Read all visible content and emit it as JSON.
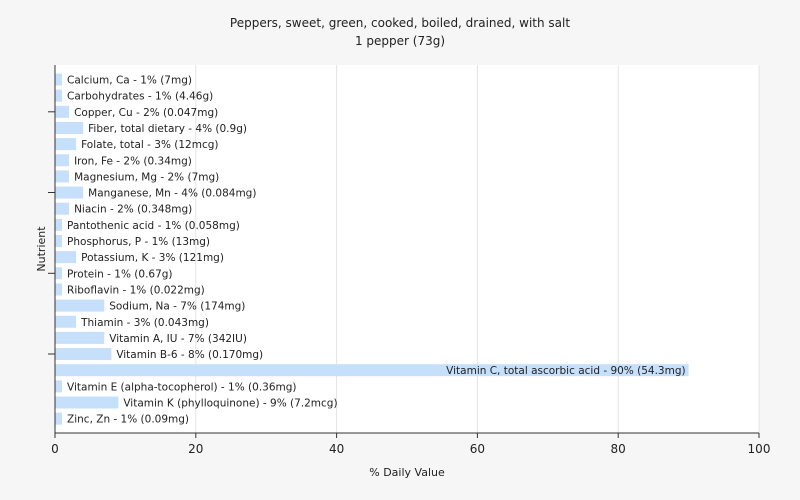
{
  "chart_data": {
    "type": "bar",
    "orientation": "horizontal",
    "title": "Peppers, sweet, green, cooked, boiled, drained, with salt",
    "subtitle": "1 pepper (73g)",
    "xlabel": "% Daily Value",
    "ylabel": "Nutrient",
    "xlim": [
      0,
      100
    ],
    "xticks": [
      0,
      20,
      40,
      60,
      80,
      100
    ],
    "grid": true,
    "bar_color": "#c6dffa",
    "categories": [
      "Calcium, Ca - 1% (7mg)",
      "Carbohydrates - 1% (4.46g)",
      "Copper, Cu - 2% (0.047mg)",
      "Fiber, total dietary - 4% (0.9g)",
      "Folate, total - 3% (12mcg)",
      "Iron, Fe - 2% (0.34mg)",
      "Magnesium, Mg - 2% (7mg)",
      "Manganese, Mn - 4% (0.084mg)",
      "Niacin - 2% (0.348mg)",
      "Pantothenic acid - 1% (0.058mg)",
      "Phosphorus, P - 1% (13mg)",
      "Potassium, K - 3% (121mg)",
      "Protein - 1% (0.67g)",
      "Riboflavin - 1% (0.022mg)",
      "Sodium, Na - 7% (174mg)",
      "Thiamin - 3% (0.043mg)",
      "Vitamin A, IU - 7% (342IU)",
      "Vitamin B-6 - 8% (0.170mg)",
      "Vitamin C, total ascorbic acid - 90% (54.3mg)",
      "Vitamin E (alpha-tocopherol) - 1% (0.36mg)",
      "Vitamin K (phylloquinone) - 9% (7.2mcg)",
      "Zinc, Zn - 1% (0.09mg)"
    ],
    "values": [
      1,
      1,
      2,
      4,
      3,
      2,
      2,
      4,
      2,
      1,
      1,
      3,
      1,
      1,
      7,
      3,
      7,
      8,
      90,
      1,
      9,
      1
    ]
  }
}
